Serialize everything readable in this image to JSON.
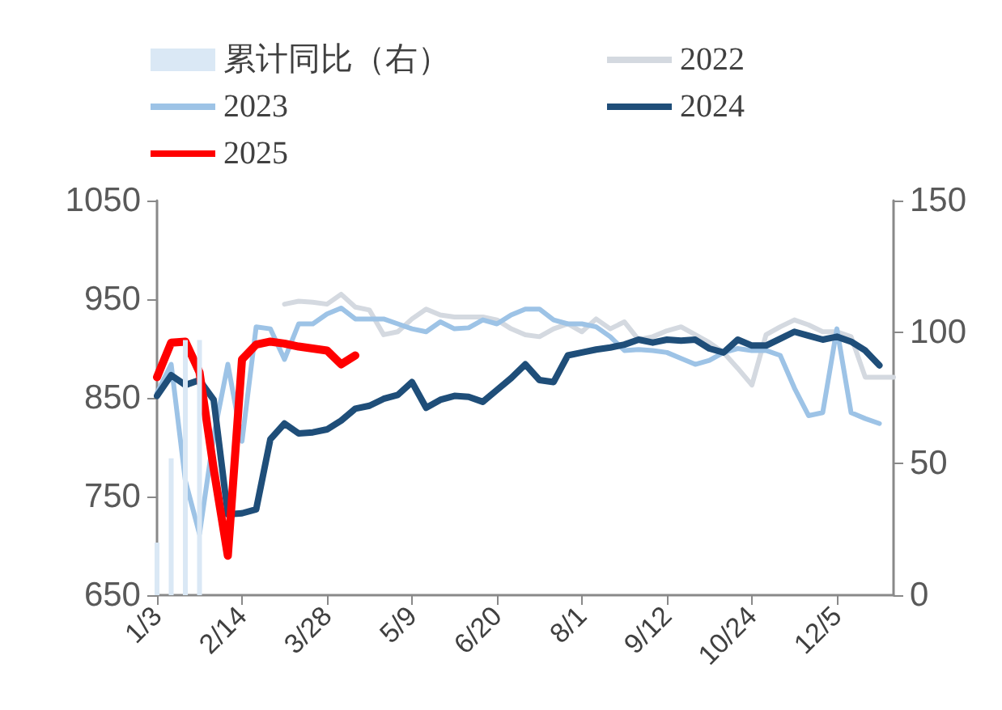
{
  "chart_data": {
    "type": "line",
    "categories": [
      "1/3",
      null,
      null,
      null,
      null,
      null,
      "2/14",
      null,
      null,
      null,
      null,
      null,
      "3/28",
      null,
      null,
      null,
      null,
      null,
      "5/9",
      null,
      null,
      null,
      null,
      null,
      "6/20",
      null,
      null,
      null,
      null,
      null,
      "8/1",
      null,
      null,
      null,
      null,
      null,
      "9/12",
      null,
      null,
      null,
      null,
      null,
      "10/24",
      null,
      null,
      null,
      null,
      null,
      "12/5",
      null,
      null,
      null,
      null
    ],
    "series": [
      {
        "name": "累计同比（右）",
        "type": "bar",
        "axis": "y2",
        "color": "#dae8f5",
        "values": [
          20,
          52,
          97,
          97,
          null,
          null,
          null,
          null,
          null,
          null,
          null,
          null,
          null,
          null,
          null,
          null,
          null,
          null,
          null,
          null,
          null,
          null,
          null,
          null,
          null,
          null,
          null,
          null,
          null,
          null,
          null,
          null,
          null,
          null,
          null,
          null,
          null,
          null,
          null,
          null,
          null,
          null,
          null,
          null,
          null,
          null,
          null,
          null,
          null,
          null,
          null,
          null,
          null
        ]
      },
      {
        "name": "2022",
        "color": "#d4d9e0",
        "values": [
          null,
          null,
          null,
          null,
          null,
          null,
          null,
          null,
          null,
          945,
          948,
          947,
          945,
          955,
          942,
          939,
          914,
          917,
          930,
          940,
          934,
          932,
          932,
          932,
          929,
          920,
          914,
          912,
          920,
          925,
          917,
          930,
          920,
          927,
          909,
          912,
          918,
          922,
          914,
          906,
          896,
          880,
          863,
          914,
          922,
          929,
          924,
          917,
          917,
          912,
          871,
          871,
          871
        ]
      },
      {
        "name": "2023",
        "color": "#9dc3e6",
        "values": [
          855,
          884,
          766,
          712,
          811,
          884,
          806,
          922,
          920,
          889,
          925,
          925,
          935,
          941,
          930,
          930,
          930,
          925,
          920,
          917,
          927,
          920,
          921,
          929,
          925,
          934,
          940,
          940,
          929,
          925,
          925,
          922,
          912,
          898,
          899,
          898,
          896,
          890,
          884,
          888,
          896,
          900,
          898,
          898,
          893,
          860,
          832,
          835,
          920,
          835,
          829,
          824,
          null
        ]
      },
      {
        "name": "2024",
        "color": "#1f4e79",
        "values": [
          852,
          873,
          863,
          868,
          848,
          732,
          733,
          737,
          808,
          824,
          814,
          815,
          818,
          827,
          839,
          842,
          849,
          853,
          866,
          840,
          848,
          852,
          851,
          846,
          858,
          870,
          884,
          868,
          866,
          893,
          896,
          899,
          901,
          904,
          909,
          906,
          909,
          908,
          909,
          900,
          896,
          909,
          903,
          903,
          910,
          917,
          913,
          909,
          912,
          907,
          898,
          883,
          null
        ]
      },
      {
        "name": "2025",
        "color": "#ff0000",
        "values": [
          871,
          906,
          907,
          876,
          778,
          690,
          889,
          904,
          907,
          905,
          902,
          900,
          898,
          884,
          893,
          null,
          null,
          null,
          null,
          null,
          null,
          null,
          null,
          null,
          null,
          null,
          null,
          null,
          null,
          null,
          null,
          null,
          null,
          null,
          null,
          null,
          null,
          null,
          null,
          null,
          null,
          null,
          null,
          null,
          null,
          null,
          null,
          null,
          null,
          null,
          null,
          null,
          null
        ]
      }
    ],
    "ylim": [
      650,
      1050
    ],
    "yticks": [
      650,
      750,
      850,
      950,
      1050
    ],
    "y2lim": [
      0,
      150
    ],
    "y2ticks": [
      0,
      50,
      100,
      150
    ],
    "grid": false,
    "legend": "top",
    "marker": "none",
    "line_style": "solid"
  }
}
